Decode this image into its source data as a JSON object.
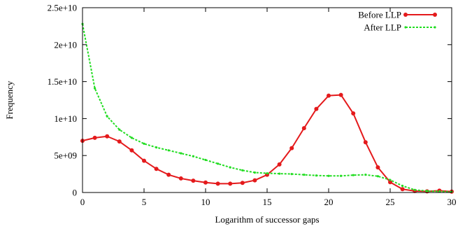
{
  "chart_data": {
    "type": "line",
    "title": "",
    "xlabel": "Logarithm of successor gaps",
    "ylabel": "Frequency",
    "xlim": [
      0,
      30
    ],
    "ylim": [
      0,
      25000000000
    ],
    "x_ticks": [
      0,
      5,
      10,
      15,
      20,
      25,
      30
    ],
    "x_tick_labels": [
      "0",
      "5",
      "10",
      "15",
      "20",
      "25",
      "30"
    ],
    "y_ticks": [
      0,
      5000000000,
      10000000000,
      15000000000,
      20000000000,
      25000000000
    ],
    "y_tick_labels": [
      "0",
      "5e+09",
      "1e+10",
      "1.5e+10",
      "2e+10",
      "2.5e+10"
    ],
    "grid": false,
    "legend_position": "top-right",
    "series": [
      {
        "name": "Before LLP",
        "color": "#e41a1c",
        "line_style": "solid",
        "marker": "circle",
        "x": [
          0,
          1,
          2,
          3,
          4,
          5,
          6,
          7,
          8,
          9,
          10,
          11,
          12,
          13,
          14,
          15,
          16,
          17,
          18,
          19,
          20,
          21,
          22,
          23,
          24,
          25,
          26,
          27,
          28,
          29,
          30
        ],
        "values": [
          7000000000,
          7400000000,
          7600000000,
          6900000000,
          5700000000,
          4300000000,
          3200000000,
          2400000000,
          1900000000,
          1600000000,
          1350000000,
          1200000000,
          1200000000,
          1300000000,
          1650000000,
          2400000000,
          3800000000,
          6000000000,
          8700000000,
          11300000000,
          13100000000,
          13200000000,
          10700000000,
          6800000000,
          3400000000,
          1400000000,
          450000000,
          200000000,
          150000000,
          250000000,
          120000000
        ]
      },
      {
        "name": "After LLP",
        "color": "#22dd22",
        "line_style": "dashed",
        "marker": "point",
        "x": [
          0,
          1,
          2,
          3,
          4,
          5,
          6,
          7,
          8,
          9,
          10,
          11,
          12,
          13,
          14,
          15,
          16,
          17,
          18,
          19,
          20,
          21,
          22,
          23,
          24,
          25,
          26,
          27,
          28,
          29,
          30
        ],
        "values": [
          22800000000,
          14100000000,
          10300000000,
          8500000000,
          7400000000,
          6600000000,
          6100000000,
          5700000000,
          5300000000,
          4900000000,
          4400000000,
          3900000000,
          3400000000,
          3000000000,
          2700000000,
          2600000000,
          2550000000,
          2500000000,
          2400000000,
          2300000000,
          2250000000,
          2250000000,
          2350000000,
          2400000000,
          2200000000,
          1700000000,
          900000000,
          350000000,
          200000000,
          150000000,
          100000000
        ]
      }
    ]
  }
}
